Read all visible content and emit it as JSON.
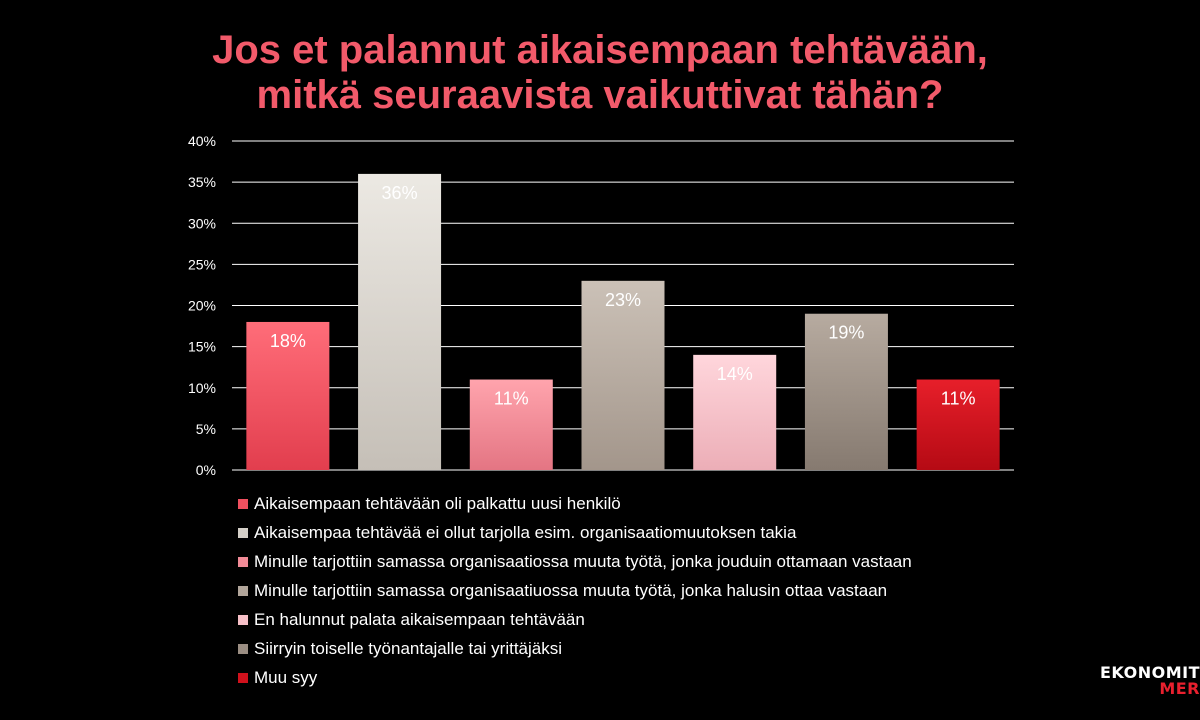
{
  "title": {
    "line1": "Jos et palannut aikaisempaan tehtävään,",
    "line2": "mitkä seuraavista vaikuttivat tähän?"
  },
  "chart_data": {
    "type": "bar",
    "title": "Jos et palannut aikaisempaan tehtävään, mitkä seuraavista vaikuttivat tähän?",
    "categories": [
      "Aikaisempaan tehtävään oli palkattu uusi henkilö",
      "Aikaisempaa tehtävää ei ollut tarjolla esim. organisaatiomuutoksen takia",
      "Minulle tarjottiin samassa organisaatiossa muuta työtä, jonka jouduin ottamaan vastaan",
      "Minulle tarjottiin samassa organisaatiuossa muuta työtä, jonka halusin ottaa vastaan",
      "En halunnut palata aikaisempaan tehtävään",
      "Siirryin toiselle työnantajalle tai yrittäjäksi",
      "Muu syy"
    ],
    "values": [
      18,
      36,
      11,
      23,
      14,
      19,
      11
    ],
    "data_labels": [
      "18%",
      "36%",
      "11%",
      "23%",
      "14%",
      "19%",
      "11%"
    ],
    "colors": [
      "#f0505f",
      "#d4cfc8",
      "#f28b97",
      "#b2a69b",
      "#f7c0c7",
      "#9b8e83",
      "#d0111c"
    ],
    "colors_top": [
      "#ff6d79",
      "#ece9e3",
      "#ffa4ad",
      "#cbc1b7",
      "#ffd6dc",
      "#b7aba0",
      "#e71f2a"
    ],
    "colors_bottom": [
      "#e23e4e",
      "#c5bfb7",
      "#e47583",
      "#a3968b",
      "#ecaeb7",
      "#867a70",
      "#b50a14"
    ],
    "ylim": [
      0,
      40
    ],
    "yticks": [
      0,
      5,
      10,
      15,
      20,
      25,
      30,
      35,
      40
    ],
    "ytick_labels": [
      "0%",
      "5%",
      "10%",
      "15%",
      "20%",
      "25%",
      "30%",
      "35%",
      "40%"
    ],
    "grid": true,
    "legend_position": "bottom"
  },
  "logo": {
    "line1": "EKONOMIT",
    "line2": "MER"
  }
}
